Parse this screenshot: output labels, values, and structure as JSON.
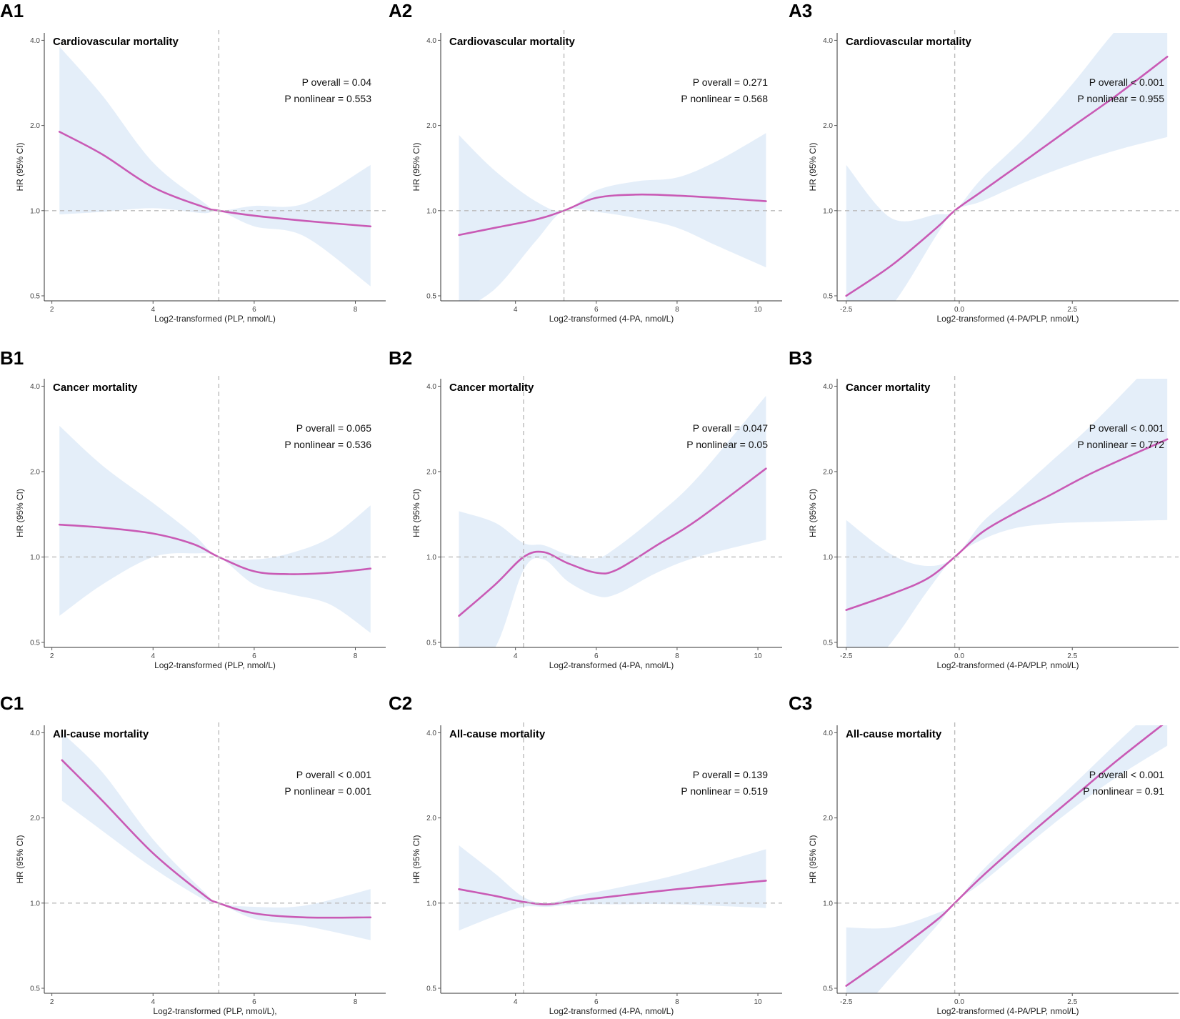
{
  "colors": {
    "line": "#c95ab5",
    "band": "#ddeaf7",
    "reference": "#bbbbbb"
  },
  "chart_data": [
    {
      "id": "A1",
      "type": "line",
      "title": "Cardiovascular mortality",
      "xlabel": "Log2-transformed (PLP, nmol/L)",
      "ylabel": "HR (95% CI)",
      "xlim": [
        1.85,
        8.6
      ],
      "ylim": [
        0.48,
        4.25
      ],
      "y_scale": "log",
      "x_ticks": [
        2,
        4,
        6,
        8
      ],
      "x_tick_labels": [
        "2",
        "4",
        "6",
        "8"
      ],
      "y_ticks": [
        0.5,
        1.0,
        2.0,
        4.0
      ],
      "y_tick_labels": [
        "0.5",
        "1.0",
        "2.0",
        "4.0"
      ],
      "reference_x": 5.3,
      "reference_y": 1.0,
      "stats": [
        "P overall = 0.04",
        "P nonlinear = 0.553"
      ],
      "series": [
        {
          "name": "HR",
          "x": [
            2.15,
            3,
            4,
            5,
            5.3,
            6,
            7,
            8.3
          ],
          "y": [
            1.9,
            1.58,
            1.21,
            1.03,
            1.0,
            0.96,
            0.92,
            0.88
          ],
          "lower": [
            0.97,
            0.99,
            1.02,
            0.98,
            1.0,
            0.88,
            0.81,
            0.54
          ],
          "upper": [
            3.8,
            2.55,
            1.48,
            1.07,
            1.0,
            1.04,
            1.06,
            1.45
          ]
        }
      ]
    },
    {
      "id": "A2",
      "type": "line",
      "title": "Cardiovascular mortality",
      "xlabel": "Log2-transformed (4-PA, nmol/L)",
      "ylabel": "HR (95% CI)",
      "xlim": [
        2.15,
        10.6
      ],
      "ylim": [
        0.48,
        4.25
      ],
      "y_scale": "log",
      "x_ticks": [
        4,
        6,
        8,
        10
      ],
      "x_tick_labels": [
        "4",
        "6",
        "8",
        "10"
      ],
      "y_ticks": [
        0.5,
        1.0,
        2.0,
        4.0
      ],
      "y_tick_labels": [
        "0.5",
        "1.0",
        "2.0",
        "4.0"
      ],
      "reference_x": 5.2,
      "reference_y": 1.0,
      "stats": [
        "P overall = 0.271",
        "P nonlinear = 0.568"
      ],
      "series": [
        {
          "name": "HR",
          "x": [
            2.6,
            3.5,
            4.5,
            5.2,
            6,
            7,
            8,
            9,
            10.2
          ],
          "y": [
            0.82,
            0.87,
            0.93,
            1.0,
            1.11,
            1.14,
            1.13,
            1.11,
            1.08
          ],
          "lower": [
            0.44,
            0.53,
            0.78,
            1.0,
            0.99,
            0.94,
            0.87,
            0.75,
            0.63
          ],
          "upper": [
            1.85,
            1.38,
            1.08,
            1.0,
            1.18,
            1.27,
            1.31,
            1.5,
            1.88
          ]
        }
      ]
    },
    {
      "id": "A3",
      "type": "line",
      "title": "Cardiovascular mortality",
      "xlabel": "Log2-transformed (4-PA/PLP, nmol/L)",
      "ylabel": "HR (95% CI)",
      "xlim": [
        -2.7,
        4.85
      ],
      "ylim": [
        0.48,
        4.25
      ],
      "y_scale": "log",
      "x_ticks": [
        -2.5,
        0.0,
        2.5
      ],
      "x_tick_labels": [
        "-2.5",
        "0.0",
        "2.5"
      ],
      "y_ticks": [
        0.5,
        1.0,
        2.0,
        4.0
      ],
      "y_tick_labels": [
        "0.5",
        "1.0",
        "2.0",
        "4.0"
      ],
      "reference_x": -0.1,
      "reference_y": 1.0,
      "stats": [
        "P overall < 0.001",
        "P nonlinear = 0.955"
      ],
      "series": [
        {
          "name": "HR",
          "x": [
            -2.5,
            -1.5,
            -0.5,
            -0.1,
            0.5,
            1.5,
            2.5,
            3.5,
            4.6
          ],
          "y": [
            0.5,
            0.64,
            0.87,
            1.0,
            1.17,
            1.52,
            1.98,
            2.57,
            3.5
          ],
          "lower": [
            0.33,
            0.46,
            0.82,
            1.0,
            1.08,
            1.27,
            1.46,
            1.64,
            1.82
          ],
          "upper": [
            1.45,
            0.94,
            0.97,
            1.0,
            1.3,
            1.85,
            2.8,
            4.4,
            6.5
          ]
        }
      ]
    },
    {
      "id": "B1",
      "type": "line",
      "title": "Cancer mortality",
      "xlabel": "Log2-transformed (PLP, nmol/L)",
      "ylabel": "HR (95% CI)",
      "xlim": [
        1.85,
        8.6
      ],
      "ylim": [
        0.48,
        4.25
      ],
      "y_scale": "log",
      "x_ticks": [
        2,
        4,
        6,
        8
      ],
      "x_tick_labels": [
        "2",
        "4",
        "6",
        "8"
      ],
      "y_ticks": [
        0.5,
        1.0,
        2.0,
        4.0
      ],
      "y_tick_labels": [
        "0.5",
        "1.0",
        "2.0",
        "4.0"
      ],
      "reference_x": 5.3,
      "reference_y": 1.0,
      "stats": [
        "P overall = 0.065",
        "P nonlinear = 0.536"
      ],
      "series": [
        {
          "name": "HR",
          "x": [
            2.15,
            3,
            4,
            4.8,
            5.3,
            6,
            6.7,
            7.5,
            8.3
          ],
          "y": [
            1.3,
            1.27,
            1.21,
            1.11,
            1.0,
            0.89,
            0.87,
            0.88,
            0.91
          ],
          "lower": [
            0.62,
            0.8,
            1.0,
            1.03,
            1.0,
            0.8,
            0.74,
            0.68,
            0.54
          ],
          "upper": [
            2.9,
            2.1,
            1.55,
            1.2,
            1.0,
            0.98,
            1.03,
            1.17,
            1.52
          ]
        }
      ]
    },
    {
      "id": "B2",
      "type": "line",
      "title": "Cancer mortality",
      "xlabel": "Log2-transformed (4-PA, nmol/L)",
      "ylabel": "HR (95% CI)",
      "xlim": [
        2.15,
        10.6
      ],
      "ylim": [
        0.48,
        4.25
      ],
      "y_scale": "log",
      "x_ticks": [
        4,
        6,
        8,
        10
      ],
      "x_tick_labels": [
        "4",
        "6",
        "8",
        "10"
      ],
      "y_ticks": [
        0.5,
        1.0,
        2.0,
        4.0
      ],
      "y_tick_labels": [
        "0.5",
        "1.0",
        "2.0",
        "4.0"
      ],
      "reference_x": 4.2,
      "reference_y": 1.0,
      "stats": [
        "P overall = 0.047",
        "P nonlinear = 0.05"
      ],
      "series": [
        {
          "name": "HR",
          "x": [
            2.6,
            3.5,
            4.2,
            4.7,
            5.3,
            6,
            6.5,
            7.5,
            8.5,
            10.2
          ],
          "y": [
            0.62,
            0.8,
            1.0,
            1.04,
            0.95,
            0.88,
            0.9,
            1.1,
            1.35,
            2.05
          ],
          "lower": [
            0.36,
            0.48,
            0.9,
            0.98,
            0.82,
            0.73,
            0.74,
            0.88,
            1.0,
            1.15
          ],
          "upper": [
            1.45,
            1.32,
            1.12,
            1.1,
            1.02,
            0.99,
            1.08,
            1.4,
            1.9,
            3.7
          ]
        }
      ]
    },
    {
      "id": "B3",
      "type": "line",
      "title": "Cancer mortality",
      "xlabel": "Log2-transformed (4-PA/PLP, nmol/L)",
      "ylabel": "HR (95% CI)",
      "xlim": [
        -2.7,
        4.85
      ],
      "ylim": [
        0.48,
        4.25
      ],
      "y_scale": "log",
      "x_ticks": [
        -2.5,
        0.0,
        2.5
      ],
      "x_tick_labels": [
        "-2.5",
        "0.0",
        "2.5"
      ],
      "y_ticks": [
        0.5,
        1.0,
        2.0,
        4.0
      ],
      "y_tick_labels": [
        "0.5",
        "1.0",
        "2.0",
        "4.0"
      ],
      "reference_x": -0.1,
      "reference_y": 1.0,
      "stats": [
        "P overall < 0.001",
        "P nonlinear = 0.772"
      ],
      "series": [
        {
          "name": "HR",
          "x": [
            -2.5,
            -1.5,
            -0.7,
            -0.1,
            0.5,
            1.2,
            2,
            3,
            4.6
          ],
          "y": [
            0.65,
            0.74,
            0.84,
            1.0,
            1.22,
            1.42,
            1.65,
            2.0,
            2.6
          ],
          "lower": [
            0.33,
            0.5,
            0.76,
            1.0,
            1.15,
            1.26,
            1.31,
            1.33,
            1.35
          ],
          "upper": [
            1.35,
            1.02,
            0.93,
            1.0,
            1.32,
            1.65,
            2.15,
            3.0,
            5.5
          ]
        }
      ]
    },
    {
      "id": "C1",
      "type": "line",
      "title": "All-cause mortality",
      "xlabel": "Log2-transformed (PLP, nmol/L),",
      "ylabel": "HR (95% CI)",
      "xlim": [
        1.85,
        8.6
      ],
      "ylim": [
        0.48,
        4.25
      ],
      "y_scale": "log",
      "x_ticks": [
        2,
        4,
        6,
        8
      ],
      "x_tick_labels": [
        "2",
        "4",
        "6",
        "8"
      ],
      "y_ticks": [
        0.5,
        1.0,
        2.0,
        4.0
      ],
      "y_tick_labels": [
        "0.5",
        "1.0",
        "2.0",
        "4.0"
      ],
      "reference_x": 5.3,
      "reference_y": 1.0,
      "stats": [
        "P overall < 0.001",
        "P nonlinear = 0.001"
      ],
      "series": [
        {
          "name": "HR",
          "x": [
            2.2,
            3,
            4,
            5,
            5.3,
            6,
            7,
            8.3
          ],
          "y": [
            3.2,
            2.3,
            1.5,
            1.07,
            1.0,
            0.92,
            0.89,
            0.89
          ],
          "lower": [
            2.3,
            1.8,
            1.33,
            1.03,
            1.0,
            0.88,
            0.83,
            0.74
          ],
          "upper": [
            4.0,
            2.9,
            1.68,
            1.1,
            1.0,
            0.97,
            0.98,
            1.12
          ]
        }
      ]
    },
    {
      "id": "C2",
      "type": "line",
      "title": "All-cause mortality",
      "xlabel": "Log2-transformed (4-PA, nmol/L)",
      "ylabel": "HR (95% CI)",
      "xlim": [
        2.15,
        10.6
      ],
      "ylim": [
        0.48,
        4.25
      ],
      "y_scale": "log",
      "x_ticks": [
        4,
        6,
        8,
        10
      ],
      "x_tick_labels": [
        "4",
        "6",
        "8",
        "10"
      ],
      "y_ticks": [
        0.5,
        1.0,
        2.0,
        4.0
      ],
      "y_tick_labels": [
        "0.5",
        "1.0",
        "2.0",
        "4.0"
      ],
      "reference_x": 4.2,
      "reference_y": 1.0,
      "stats": [
        "P overall = 0.139",
        "P nonlinear = 0.519"
      ],
      "series": [
        {
          "name": "HR",
          "x": [
            2.6,
            3.5,
            4.2,
            4.8,
            5.5,
            6.5,
            8,
            10.2
          ],
          "y": [
            1.12,
            1.06,
            1.01,
            0.99,
            1.02,
            1.06,
            1.12,
            1.2
          ],
          "lower": [
            0.8,
            0.9,
            0.97,
            0.97,
            0.99,
            0.99,
            0.99,
            0.96
          ],
          "upper": [
            1.6,
            1.27,
            1.05,
            1.0,
            1.06,
            1.13,
            1.26,
            1.55
          ]
        }
      ]
    },
    {
      "id": "C3",
      "type": "line",
      "title": "All-cause mortality",
      "xlabel": "Log2-transformed (4-PA/PLP, nmol/L)",
      "ylabel": "HR (95% CI)",
      "xlim": [
        -2.7,
        4.85
      ],
      "ylim": [
        0.48,
        4.25
      ],
      "y_scale": "log",
      "x_ticks": [
        -2.5,
        0.0,
        2.5
      ],
      "x_tick_labels": [
        "-2.5",
        "0.0",
        "2.5"
      ],
      "y_ticks": [
        0.5,
        1.0,
        2.0,
        4.0
      ],
      "y_tick_labels": [
        "0.5",
        "1.0",
        "2.0",
        "4.0"
      ],
      "reference_x": -0.1,
      "reference_y": 1.0,
      "stats": [
        "P overall < 0.001",
        "P nonlinear = 0.91"
      ],
      "series": [
        {
          "name": "HR",
          "x": [
            -2.5,
            -1.5,
            -0.5,
            -0.1,
            0.5,
            1.5,
            2.5,
            3.5,
            4.6
          ],
          "y": [
            0.51,
            0.66,
            0.87,
            1.0,
            1.24,
            1.72,
            2.35,
            3.2,
            4.4
          ],
          "lower": [
            0.36,
            0.55,
            0.83,
            1.0,
            1.18,
            1.6,
            2.15,
            2.8,
            3.6
          ],
          "upper": [
            0.82,
            0.82,
            0.92,
            1.0,
            1.3,
            1.85,
            2.6,
            3.7,
            5.4
          ]
        }
      ]
    }
  ]
}
